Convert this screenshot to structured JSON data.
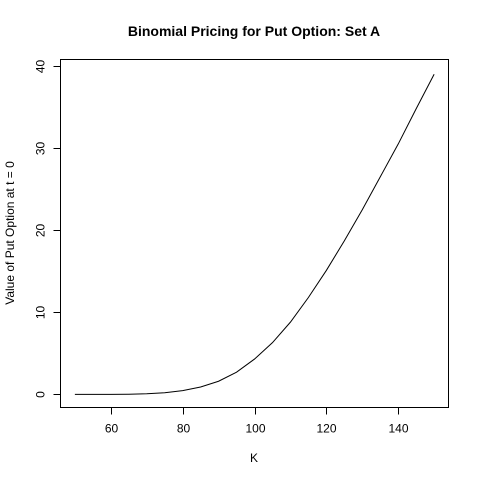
{
  "chart_data": {
    "type": "line",
    "title": "Binomial Pricing for Put Option: Set A",
    "xlabel": "K",
    "ylabel": "Value of Put Option at t = 0",
    "xlim": [
      46,
      154
    ],
    "ylim": [
      -1.6,
      40.8
    ],
    "x_ticks": [
      60,
      80,
      100,
      120,
      140
    ],
    "y_ticks": [
      0,
      10,
      20,
      30,
      40
    ],
    "grid": false,
    "legend": "none",
    "series": [
      {
        "x": [
          50,
          55,
          60,
          65,
          70,
          75,
          80,
          85,
          90,
          95,
          100,
          105,
          110,
          115,
          120,
          125,
          130,
          135,
          140,
          145,
          150
        ],
        "y": [
          0.0,
          0.0,
          0.0,
          0.02,
          0.08,
          0.2,
          0.45,
          0.9,
          1.6,
          2.7,
          4.3,
          6.3,
          8.8,
          11.8,
          15.1,
          18.7,
          22.5,
          26.5,
          30.5,
          34.8,
          39.0
        ],
        "color": "#000000"
      }
    ]
  }
}
